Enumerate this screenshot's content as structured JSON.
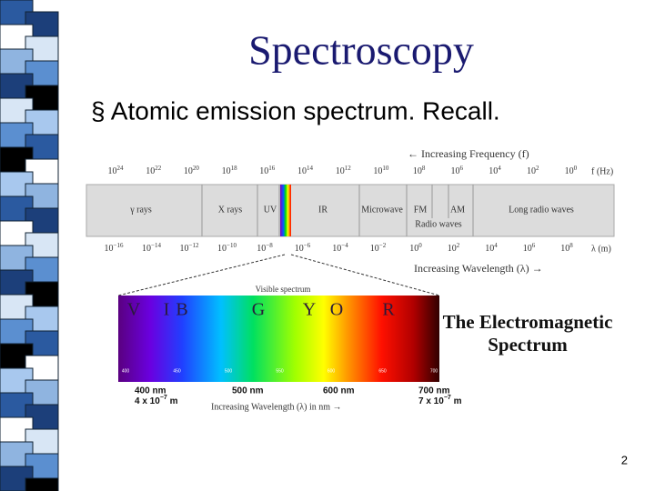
{
  "slide": {
    "title": "Spectroscopy",
    "bullet": "§ Atomic emission spectrum. Recall.",
    "frequency_heading": "← Increasing Frequency (f)",
    "frequency_ticks": [
      {
        "base": "10",
        "exp": "24"
      },
      {
        "base": "10",
        "exp": "22"
      },
      {
        "base": "10",
        "exp": "20"
      },
      {
        "base": "10",
        "exp": "18"
      },
      {
        "base": "10",
        "exp": "16"
      },
      {
        "base": "10",
        "exp": "14"
      },
      {
        "base": "10",
        "exp": "12"
      },
      {
        "base": "10",
        "exp": "10"
      },
      {
        "base": "10",
        "exp": "8"
      },
      {
        "base": "10",
        "exp": "6"
      },
      {
        "base": "10",
        "exp": "4"
      },
      {
        "base": "10",
        "exp": "2"
      },
      {
        "base": "10",
        "exp": "0"
      }
    ],
    "frequency_unit": "f (Hz)",
    "wavelength_ticks": [
      {
        "base": "10",
        "exp": "−16"
      },
      {
        "base": "10",
        "exp": "−14"
      },
      {
        "base": "10",
        "exp": "−12"
      },
      {
        "base": "10",
        "exp": "−10"
      },
      {
        "base": "10",
        "exp": "−8"
      },
      {
        "base": "10",
        "exp": "−6"
      },
      {
        "base": "10",
        "exp": "−4"
      },
      {
        "base": "10",
        "exp": "−2"
      },
      {
        "base": "10",
        "exp": "0"
      },
      {
        "base": "10",
        "exp": "2"
      },
      {
        "base": "10",
        "exp": "4"
      },
      {
        "base": "10",
        "exp": "6"
      },
      {
        "base": "10",
        "exp": "8"
      }
    ],
    "wavelength_unit": "λ (m)",
    "wavelength_heading": "Increasing Wavelength (λ) →",
    "bands": [
      "γ rays",
      "X rays",
      "UV",
      "IR",
      "Microwave",
      "FM",
      "AM",
      "Long radio waves",
      "Radio waves"
    ],
    "visible_heading": "Visible spectrum",
    "colors": [
      "V",
      "I",
      "B",
      "G",
      "Y",
      "O",
      "R"
    ],
    "visible_scale": [
      "400",
      "450",
      "500",
      "550",
      "600",
      "650",
      "700"
    ],
    "nm_labels": [
      "400 nm",
      "500 nm",
      "600 nm",
      "700 nm"
    ],
    "meter_labels": [
      {
        "text": "4 x 10",
        "exp": "−7",
        "unit": " m"
      },
      {
        "text": "7 x 10",
        "exp": "−7",
        "unit": " m"
      }
    ],
    "visible_axis": "Increasing Wavelength (λ) in nm →",
    "caption": [
      "The Electromagnetic",
      "Spectrum"
    ],
    "page_number": "2"
  }
}
